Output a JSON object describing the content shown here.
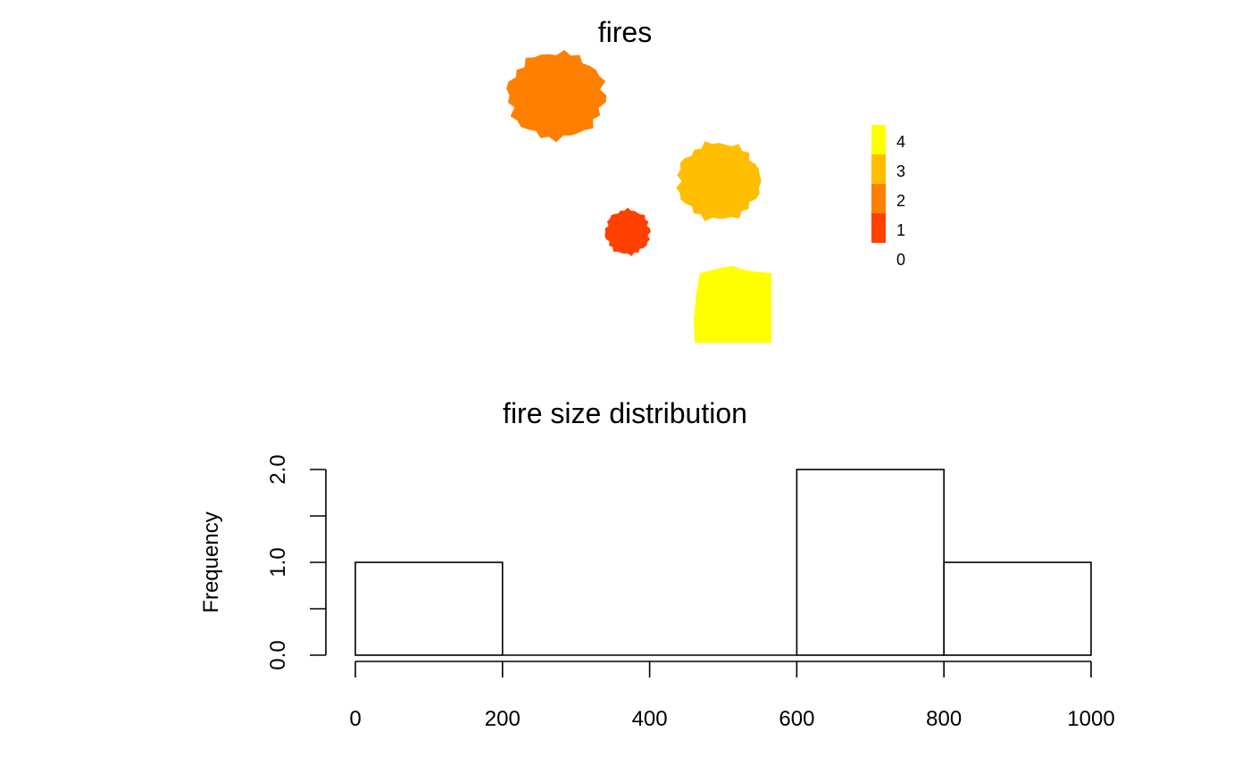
{
  "chart_data": [
    {
      "type": "heatmap",
      "title": "fires",
      "legend": {
        "placement": "right",
        "levels": [
          {
            "value": "4",
            "color": "#ffff00"
          },
          {
            "value": "3",
            "color": "#ffbf00"
          },
          {
            "value": "2",
            "color": "#ff8000"
          },
          {
            "value": "1",
            "color": "#ff4000"
          },
          {
            "value": "0",
            "color": "#ffffff"
          }
        ]
      },
      "patches": [
        {
          "value": 2,
          "color": "#ff8000",
          "shape": "blob"
        },
        {
          "value": 3,
          "color": "#ffbf00",
          "shape": "blob"
        },
        {
          "value": 1,
          "color": "#ff4000",
          "shape": "blob"
        },
        {
          "value": 4,
          "color": "#ffff00",
          "shape": "square"
        }
      ]
    },
    {
      "type": "bar",
      "title": "fire size distribution",
      "xlabel": "",
      "ylabel": "Frequency",
      "bins": [
        {
          "from": 0,
          "to": 200,
          "count": 1
        },
        {
          "from": 200,
          "to": 400,
          "count": 0
        },
        {
          "from": 400,
          "to": 600,
          "count": 0
        },
        {
          "from": 600,
          "to": 800,
          "count": 2
        },
        {
          "from": 800,
          "to": 1000,
          "count": 1
        }
      ],
      "xlim": [
        0,
        1000
      ],
      "ylim": [
        0,
        2
      ],
      "xticks": [
        "0",
        "200",
        "400",
        "600",
        "800",
        "1000"
      ],
      "yticks": [
        "0.0",
        "1.0",
        "2.0"
      ],
      "grid": false
    }
  ]
}
